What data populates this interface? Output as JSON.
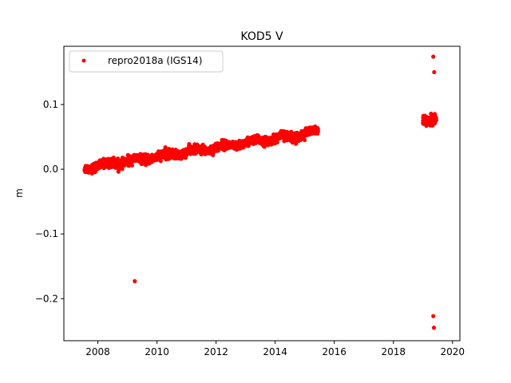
{
  "chart_data": {
    "type": "scatter",
    "title": "KOD5 V",
    "xlabel": "",
    "ylabel": "m",
    "xlim": [
      2006.85,
      2020.25
    ],
    "ylim": [
      -0.265,
      0.19
    ],
    "grid": false,
    "legend_position": "top-left",
    "x_ticks": [
      2008,
      2010,
      2012,
      2014,
      2016,
      2018,
      2020
    ],
    "x_tick_labels": [
      "2008",
      "2010",
      "2012",
      "2014",
      "2016",
      "2018",
      "2020"
    ],
    "y_ticks": [
      -0.2,
      -0.1,
      0.0,
      0.1
    ],
    "y_tick_labels": [
      "−0.2",
      "−0.1",
      "0.0",
      "0.1"
    ],
    "series": [
      {
        "name": "repro2018a (IGS14)",
        "color": "#ff0000",
        "marker": "circle",
        "main_trend": {
          "x_start": 2007.55,
          "x_end": 2015.45,
          "y_start": 0.002,
          "y_end": 0.058,
          "scatter": 0.006
        },
        "cluster_2019": {
          "x_start": 2019.0,
          "x_end": 2019.45,
          "y_center": 0.076,
          "scatter": 0.006
        },
        "outliers": [
          {
            "x": 2009.25,
            "y": -0.173
          },
          {
            "x": 2019.35,
            "y": 0.174
          },
          {
            "x": 2019.38,
            "y": 0.15
          },
          {
            "x": 2019.35,
            "y": -0.227
          },
          {
            "x": 2019.37,
            "y": -0.245
          }
        ]
      }
    ]
  }
}
